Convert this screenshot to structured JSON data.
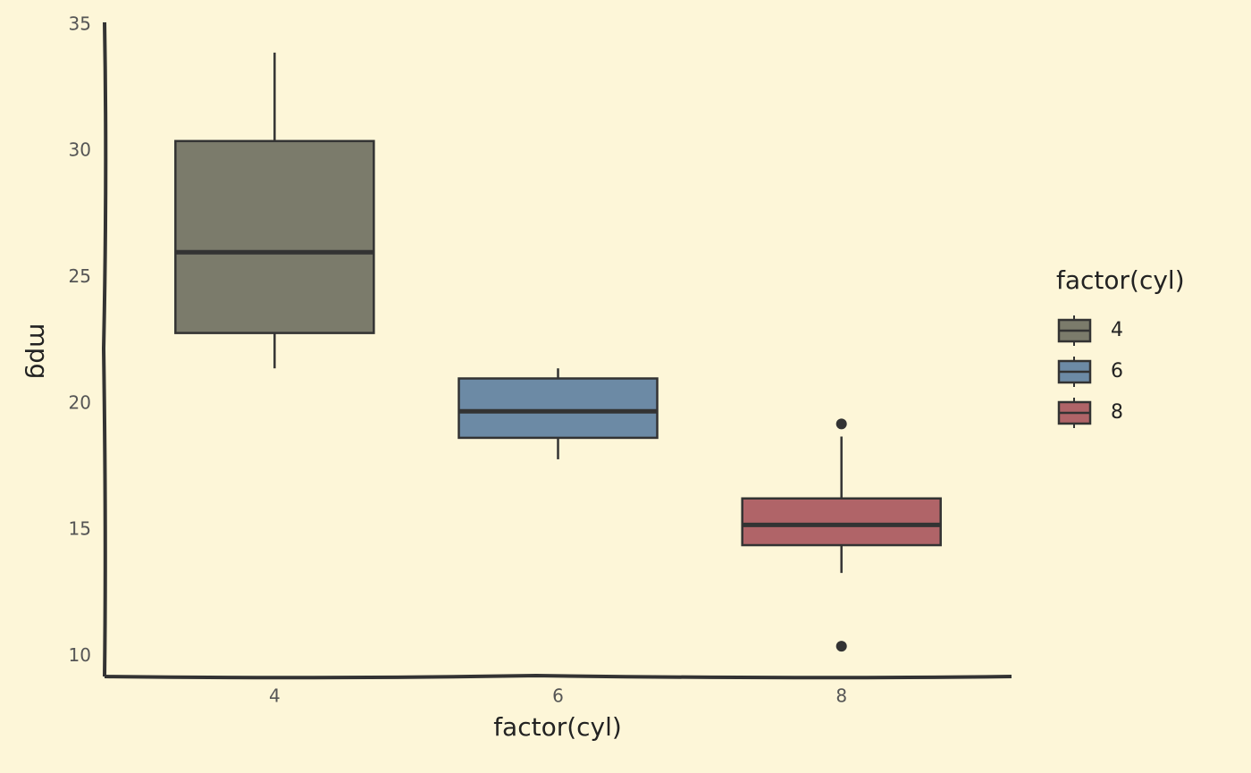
{
  "chart_data": {
    "type": "box",
    "x_label": "factor(cyl)",
    "y_label": "mpg",
    "legend": {
      "title": "factor(cyl)",
      "position": "right"
    },
    "boxes": [
      {
        "name": "4",
        "color": "#7b7b6b",
        "whisker_low": 21.4,
        "q1": 22.8,
        "median": 26,
        "q3": 30.4,
        "whisker_high": 33.9,
        "outliers": []
      },
      {
        "name": "6",
        "color": "#6c8aa5",
        "whisker_low": 17.8,
        "q1": 18.65,
        "median": 19.7,
        "q3": 21,
        "whisker_high": 21.4,
        "outliers": []
      },
      {
        "name": "8",
        "color": "#b06468",
        "whisker_low": 13.3,
        "q1": 14.4,
        "median": 15.2,
        "q3": 16.25,
        "whisker_high": 18.7,
        "outliers": [
          10.4,
          19.2
        ]
      }
    ],
    "ylim": [
      9.2,
      35.1
    ],
    "yticks": [
      10,
      15,
      20,
      25,
      30,
      35
    ],
    "grid": false
  }
}
